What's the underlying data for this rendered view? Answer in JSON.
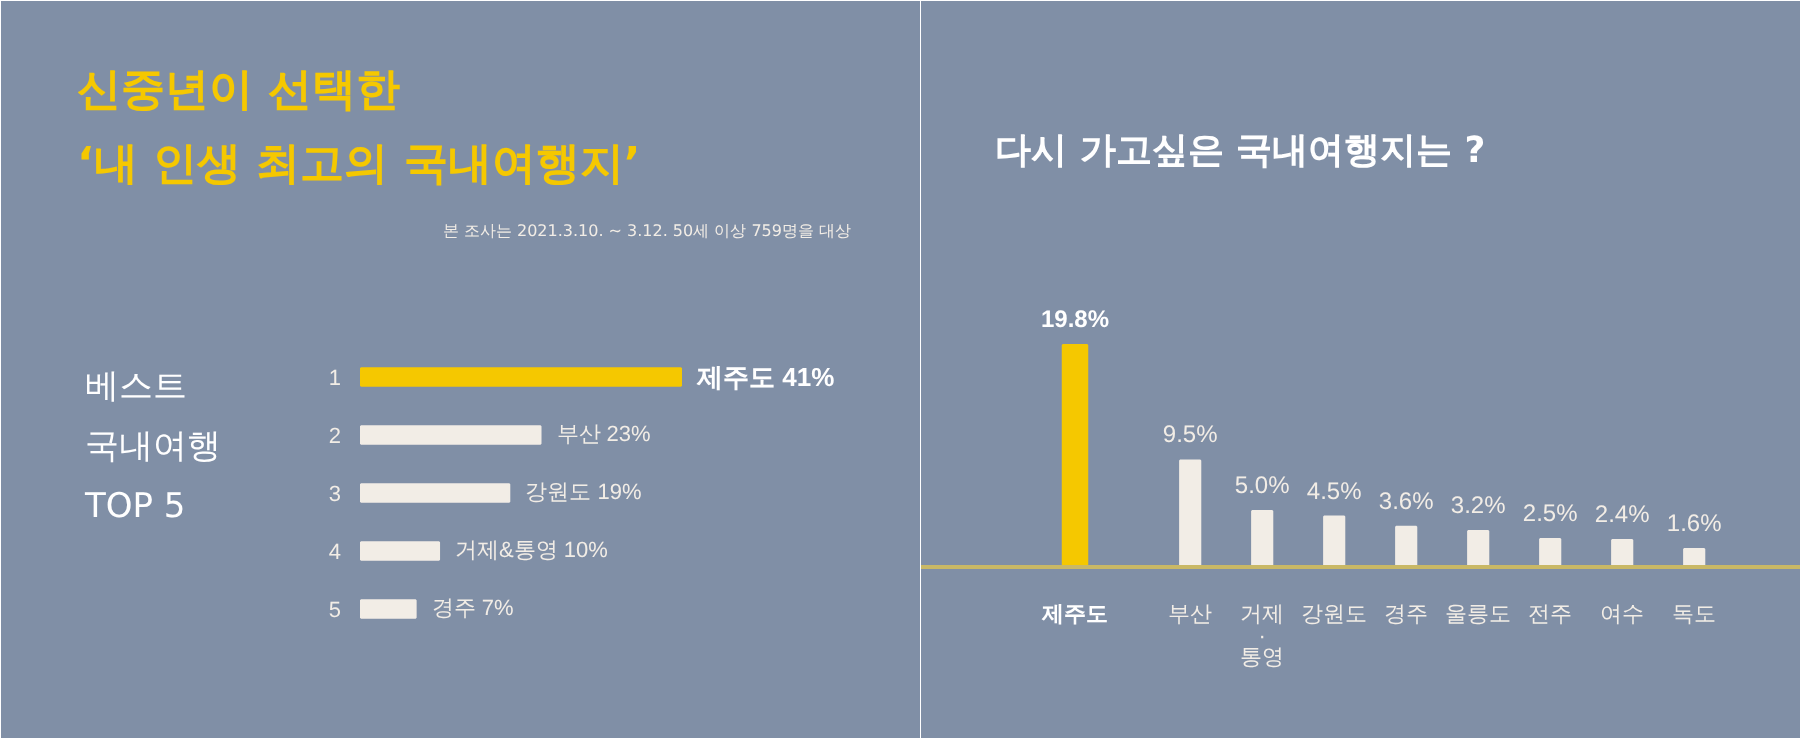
{
  "chart_data": [
    {
      "type": "bar",
      "orientation": "horizontal",
      "title": "신중년이 선택한\n‘내 인생 최고의 국내여행지’",
      "subtitle": "베스트\n국내여행\nTOP 5",
      "annotations": [
        "본 조사는 2021.3.10. ~ 3.12. 50세 이상 759명을 대상"
      ],
      "categories": [
        "1",
        "2",
        "3",
        "4",
        "5"
      ],
      "values": [
        41,
        23,
        19,
        10,
        7
      ],
      "colors": [
        "#f5c800",
        "#f2ede6",
        "#f2ede6",
        "#f2ede6",
        "#f2ede6"
      ],
      "value_labels": [
        "제주도 41%",
        "부산 23%",
        "강원도 19%",
        "거제&통영 10%",
        "경주 7%"
      ]
    },
    {
      "type": "bar",
      "title": "다시 가고싶은 국내여행지는 ?",
      "categories": [
        "제주도",
        "부산",
        "거제\n·\n통영",
        "강원도",
        "경주",
        "울릉도",
        "전주",
        "여수",
        "독도"
      ],
      "values": [
        19.8,
        9.5,
        5.0,
        4.5,
        3.6,
        3.2,
        2.5,
        2.4,
        1.6
      ],
      "colors": [
        "#f5c800",
        "#f2ede6",
        "#f2ede6",
        "#f2ede6",
        "#f2ede6",
        "#f2ede6",
        "#f2ede6",
        "#f2ede6",
        "#f2ede6"
      ],
      "value_labels": [
        "19.8%",
        "9.5%",
        "5.0%",
        "4.5%",
        "3.6%",
        "3.2%",
        "2.5%",
        "2.4%",
        "1.6%"
      ]
    }
  ]
}
